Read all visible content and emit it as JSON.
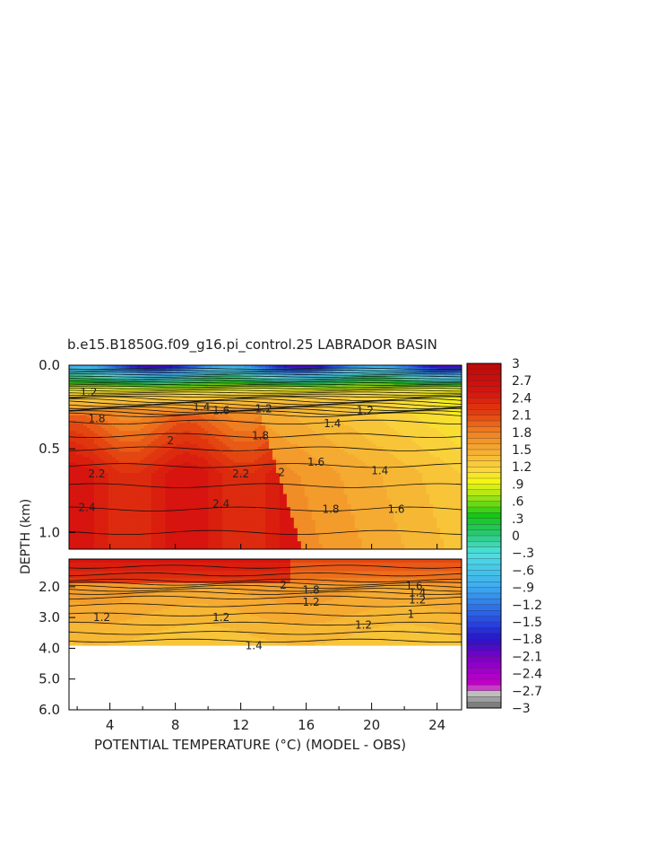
{
  "chart_data": {
    "type": "heatmap",
    "title": "b.e15.B1850G.f09_g16.pi_control.25 LABRADOR BASIN",
    "xlabel": "POTENTIAL TEMPERATURE (°C) (MODEL - OBS)",
    "ylabel": "DEPTH (km)",
    "x_ticks": [
      "4",
      "8",
      "12",
      "16",
      "20",
      "24"
    ],
    "x_range": [
      1.5,
      25.5
    ],
    "upper_panel": {
      "y_ticks": [
        "0.0",
        "0.5",
        "1.0"
      ],
      "y_range": [
        0.0,
        1.1
      ]
    },
    "lower_panel": {
      "y_ticks": [
        "2.0",
        "3.0",
        "4.0",
        "5.0",
        "6.0"
      ],
      "y_range": [
        1.1,
        6.0
      ],
      "data_bottom_depth": 3.9
    },
    "colorbar": {
      "labels": [
        "3",
        "2.7",
        "2.4",
        "2.1",
        "1.8",
        "1.5",
        "1.2",
        ".9",
        ".6",
        ".3",
        "0",
        "-.3",
        "-.6",
        "-.9",
        "-1.2",
        "-1.5",
        "-1.8",
        "-2.1",
        "-2.4",
        "-2.7",
        "-3"
      ],
      "range": [
        -3,
        3
      ]
    },
    "contour_labels": [
      {
        "text": "1.2",
        "x": 2.7,
        "depth": 0.16
      },
      {
        "text": "1.8",
        "x": 3.2,
        "depth": 0.32
      },
      {
        "text": "1.4",
        "x": 9.6,
        "depth": 0.25
      },
      {
        "text": "1.6",
        "x": 10.8,
        "depth": 0.27
      },
      {
        "text": "1.2",
        "x": 13.4,
        "depth": 0.26
      },
      {
        "text": "1.8",
        "x": 13.2,
        "depth": 0.42
      },
      {
        "text": "2",
        "x": 7.7,
        "depth": 0.45
      },
      {
        "text": "1.4",
        "x": 17.6,
        "depth": 0.35
      },
      {
        "text": "1.2",
        "x": 19.6,
        "depth": 0.27
      },
      {
        "text": "1.6",
        "x": 16.6,
        "depth": 0.58
      },
      {
        "text": "1.4",
        "x": 20.5,
        "depth": 0.63
      },
      {
        "text": "2.2",
        "x": 3.2,
        "depth": 0.65
      },
      {
        "text": "2.2",
        "x": 12.0,
        "depth": 0.65
      },
      {
        "text": "2",
        "x": 14.5,
        "depth": 0.64
      },
      {
        "text": "2.4",
        "x": 2.6,
        "depth": 0.85
      },
      {
        "text": "2.4",
        "x": 10.8,
        "depth": 0.83
      },
      {
        "text": "1.8",
        "x": 17.5,
        "depth": 0.86
      },
      {
        "text": "1.6",
        "x": 21.5,
        "depth": 0.86
      },
      {
        "text": "1.2",
        "x": 3.5,
        "depth": 3.0
      },
      {
        "text": "1.2",
        "x": 10.8,
        "depth": 3.0
      },
      {
        "text": "1.2",
        "x": 19.5,
        "depth": 3.25
      },
      {
        "text": "1.4",
        "x": 12.8,
        "depth": 3.92
      },
      {
        "text": "1.6",
        "x": 22.6,
        "depth": 1.97
      },
      {
        "text": "1.4",
        "x": 22.8,
        "depth": 2.2
      },
      {
        "text": "1.2",
        "x": 22.8,
        "depth": 2.43
      },
      {
        "text": "1",
        "x": 22.4,
        "depth": 2.9
      },
      {
        "text": "2",
        "x": 14.6,
        "depth": 1.95
      },
      {
        "text": "1.2",
        "x": 16.3,
        "depth": 2.5
      },
      {
        "text": "1.8",
        "x": 16.3,
        "depth": 2.1
      }
    ]
  }
}
